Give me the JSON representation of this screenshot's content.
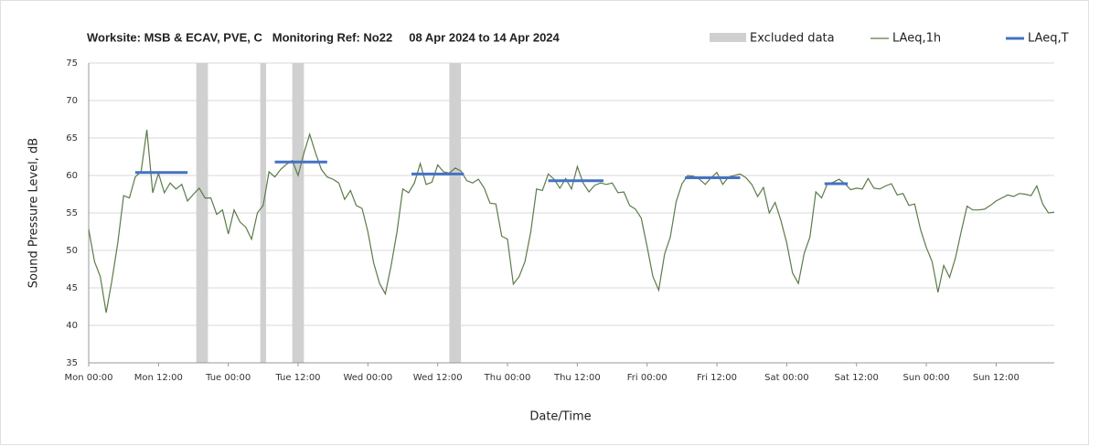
{
  "chart_data": {
    "type": "line",
    "title": "Worksite: MSB & ECAV, PVE, C   Monitoring Ref: No22     08 Apr 2024 to 14 Apr 2024",
    "x_label": "Date/Time",
    "y_label": "Sound Pressure Level, dB",
    "xlim": [
      0,
      166
    ],
    "xticks": [
      {
        "value": 0,
        "label": "Mon 00:00"
      },
      {
        "value": 12,
        "label": "Mon 12:00"
      },
      {
        "value": 24,
        "label": "Tue 00:00"
      },
      {
        "value": 36,
        "label": "Tue 12:00"
      },
      {
        "value": 48,
        "label": "Wed 00:00"
      },
      {
        "value": 60,
        "label": "Wed 12:00"
      },
      {
        "value": 72,
        "label": "Thu 00:00"
      },
      {
        "value": 84,
        "label": "Thu 12:00"
      },
      {
        "value": 96,
        "label": "Fri 00:00"
      },
      {
        "value": 108,
        "label": "Fri 12:00"
      },
      {
        "value": 120,
        "label": "Sat 00:00"
      },
      {
        "value": 132,
        "label": "Sat 12:00"
      },
      {
        "value": 144,
        "label": "Sun 00:00"
      },
      {
        "value": 156,
        "label": "Sun 12:00"
      }
    ],
    "ylim": [
      35,
      75
    ],
    "yticks": [
      35,
      40,
      45,
      50,
      55,
      60,
      65,
      70,
      75
    ],
    "grid": "y",
    "excluded": {
      "name": "Excluded data",
      "color": "#d0d0d0",
      "ranges": [
        [
          18.5,
          20.5
        ],
        [
          29.5,
          30.5
        ],
        [
          35,
          37
        ],
        [
          62,
          64
        ]
      ]
    },
    "series": [
      {
        "name": "LAeq,1h",
        "color": "#5b7b4b",
        "x": [
          0,
          1,
          2,
          3,
          4,
          5,
          6,
          7,
          8,
          9,
          10,
          11,
          12,
          13,
          14,
          15,
          16,
          17,
          18,
          19,
          20,
          21,
          22,
          23,
          24,
          25,
          26,
          27,
          28,
          29,
          30,
          31,
          32,
          33,
          34,
          35,
          36,
          37,
          38,
          39,
          40,
          41,
          42,
          43,
          44,
          45,
          46,
          47,
          48,
          49,
          50,
          51,
          52,
          53,
          54,
          55,
          56,
          57,
          58,
          59,
          60,
          61,
          62,
          63,
          64,
          65,
          66,
          67,
          68,
          69,
          70,
          71,
          72,
          73,
          74,
          75,
          76,
          77,
          78,
          79,
          80,
          81,
          82,
          83,
          84,
          85,
          86,
          87,
          88,
          89,
          90,
          91,
          92,
          93,
          94,
          95,
          96,
          97,
          98,
          99,
          100,
          101,
          102,
          103,
          104,
          105,
          106,
          107,
          108,
          109,
          110,
          111,
          112,
          113,
          114,
          115,
          116,
          117,
          118,
          119,
          120,
          121,
          122,
          123,
          124,
          125,
          126,
          127,
          128,
          129,
          130,
          131,
          132,
          133,
          134,
          135,
          136,
          137,
          138,
          139,
          140,
          141,
          142,
          143,
          144,
          145,
          146,
          147,
          148,
          149,
          150,
          151,
          152,
          153,
          154,
          155,
          156,
          157,
          158,
          159,
          160,
          161,
          162,
          163,
          164,
          165,
          166
        ],
        "values": [
          52.8,
          48.5,
          46.5,
          41.7,
          46,
          51,
          57.3,
          57,
          59.8,
          60.5,
          66.1,
          57.7,
          60.3,
          57.7,
          59,
          58.2,
          58.8,
          56.6,
          57.5,
          58.3,
          57,
          57,
          54.8,
          55.4,
          52.2,
          55.4,
          53.8,
          53.1,
          51.5,
          55,
          56,
          60.5,
          59.8,
          60.8,
          61.5,
          62,
          60,
          63,
          65.5,
          63,
          60.8,
          59.8,
          59.5,
          59,
          56.8,
          58,
          56,
          55.6,
          52.5,
          48.3,
          45.6,
          44.2,
          48,
          52.5,
          58.2,
          57.7,
          59,
          61.6,
          58.8,
          59.1,
          61.4,
          60.5,
          60.3,
          61,
          60.6,
          59.3,
          59,
          59.5,
          58.3,
          56.3,
          56.2,
          51.9,
          51.5,
          45.5,
          46.5,
          48.5,
          52.5,
          58.2,
          58,
          60.2,
          59.5,
          58.3,
          59.6,
          58.2,
          61.2,
          59,
          57.8,
          58.7,
          59,
          58.8,
          59,
          57.7,
          57.8,
          56,
          55.5,
          54.3,
          50.5,
          46.5,
          44.7,
          49.5,
          51.8,
          56.5,
          58.9,
          60,
          59.9,
          59.5,
          58.8,
          59.7,
          60.4,
          58.8,
          59.8,
          60,
          60.2,
          59.7,
          58.8,
          57.2,
          58.4,
          55,
          56.4,
          54,
          51,
          47,
          45.6,
          49.6,
          51.8,
          57.8,
          57,
          58.9,
          59.1,
          59.5,
          58.9,
          58.1,
          58.3,
          58.2,
          59.6,
          58.3,
          58.2,
          58.6,
          58.9,
          57.4,
          57.6,
          56,
          56.2,
          52.8,
          50.4,
          48.5,
          44.4,
          48,
          46.4,
          49,
          52.5,
          55.9,
          55.4,
          55.4,
          55.5,
          56,
          56.6,
          57,
          57.4,
          57.2,
          57.6,
          57.5,
          57.3,
          58.6,
          56.2,
          55,
          55.1
        ]
      },
      {
        "name": "LAeq,T",
        "color": "#4472c4",
        "x": [
          [
            8,
            17
          ],
          [
            32,
            41
          ],
          [
            55.5,
            64.5
          ],
          [
            79,
            88.5
          ],
          [
            102.5,
            112
          ],
          [
            126.5,
            130.5
          ]
        ],
        "values": [
          60.4,
          61.8,
          60.2,
          59.3,
          59.7,
          58.9
        ]
      }
    ]
  }
}
